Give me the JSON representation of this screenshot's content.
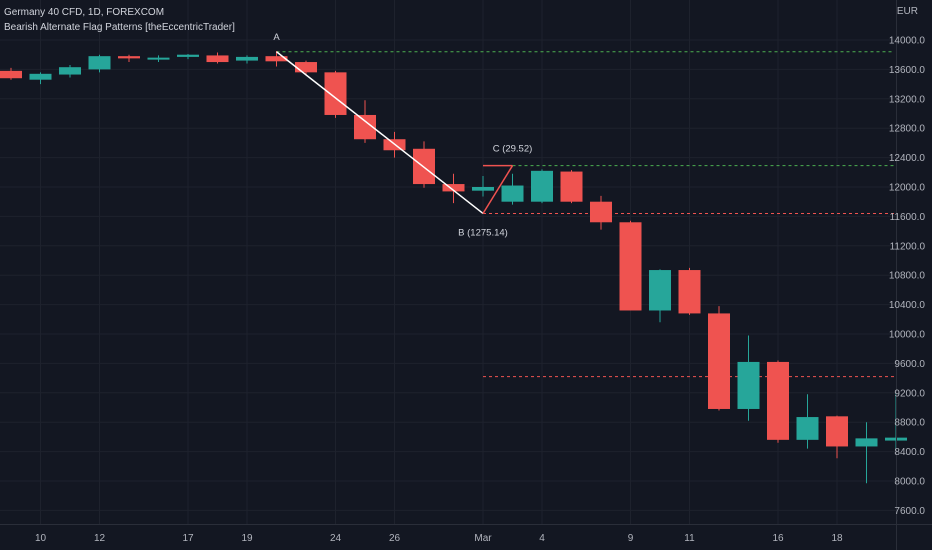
{
  "header": {
    "symbol_line": "Germany 40 CFD, 1D, FOREXCOM",
    "indicator_line": "Bearish Alternate Flag Patterns [theEccentricTrader]"
  },
  "axis": {
    "currency": "EUR"
  },
  "colors": {
    "background": "#131722",
    "up": "#26a69a",
    "down": "#ef5350",
    "grid": "#1e222d",
    "pattern_line": "#ffffff",
    "pattern_line_red": "#ef5350",
    "level_green": "#4caf50",
    "level_red": "#ef5350"
  },
  "chart_data": {
    "type": "candlestick",
    "y_ticks": [
      14000,
      13600,
      13200,
      12800,
      12400,
      12000,
      11600,
      11200,
      10800,
      10400,
      10000,
      9600,
      9200,
      8800,
      8400,
      8000,
      7600
    ],
    "y_tick_labels": [
      "14000.0",
      "13600.0",
      "13200.0",
      "12800.0",
      "12400.0",
      "12000.0",
      "11600.0",
      "11200.0",
      "10800.0",
      "10400.0",
      "10000.0",
      "9600.0",
      "9200.0",
      "8800.0",
      "8400.0",
      "8000.0",
      "7600.0"
    ],
    "x_ticks": [
      {
        "index": 1,
        "label": "10"
      },
      {
        "index": 3,
        "label": "12"
      },
      {
        "index": 6,
        "label": "17"
      },
      {
        "index": 8,
        "label": "19"
      },
      {
        "index": 11,
        "label": "24"
      },
      {
        "index": 13,
        "label": "26"
      },
      {
        "index": 16,
        "label": "Mar"
      },
      {
        "index": 18,
        "label": "4"
      },
      {
        "index": 21,
        "label": "9"
      },
      {
        "index": 23,
        "label": "11"
      },
      {
        "index": 26,
        "label": "16"
      },
      {
        "index": 28,
        "label": "18"
      }
    ],
    "candles": [
      {
        "o": 13580,
        "h": 13620,
        "l": 13460,
        "c": 13480
      },
      {
        "o": 13460,
        "h": 13560,
        "l": 13400,
        "c": 13540
      },
      {
        "o": 13530,
        "h": 13660,
        "l": 13490,
        "c": 13630
      },
      {
        "o": 13600,
        "h": 13800,
        "l": 13560,
        "c": 13780
      },
      {
        "o": 13780,
        "h": 13800,
        "l": 13700,
        "c": 13750
      },
      {
        "o": 13740,
        "h": 13790,
        "l": 13700,
        "c": 13760
      },
      {
        "o": 13770,
        "h": 13810,
        "l": 13740,
        "c": 13800
      },
      {
        "o": 13790,
        "h": 13830,
        "l": 13680,
        "c": 13700
      },
      {
        "o": 13720,
        "h": 13790,
        "l": 13680,
        "c": 13770
      },
      {
        "o": 13780,
        "h": 13850,
        "l": 13640,
        "c": 13710
      },
      {
        "o": 13700,
        "h": 13720,
        "l": 13520,
        "c": 13560
      },
      {
        "o": 13560,
        "h": 13580,
        "l": 12940,
        "c": 12980
      },
      {
        "o": 12980,
        "h": 13180,
        "l": 12600,
        "c": 12650
      },
      {
        "o": 12650,
        "h": 12750,
        "l": 12400,
        "c": 12500
      },
      {
        "o": 12520,
        "h": 12620,
        "l": 11990,
        "c": 12040
      },
      {
        "o": 12040,
        "h": 12180,
        "l": 11780,
        "c": 11940
      },
      {
        "o": 11950,
        "h": 12150,
        "l": 11870,
        "c": 12000
      },
      {
        "o": 11800,
        "h": 12180,
        "l": 11760,
        "c": 12020
      },
      {
        "o": 11800,
        "h": 12240,
        "l": 11780,
        "c": 12220
      },
      {
        "o": 12210,
        "h": 12230,
        "l": 11780,
        "c": 11800
      },
      {
        "o": 11800,
        "h": 11880,
        "l": 11420,
        "c": 11520
      },
      {
        "o": 11520,
        "h": 11540,
        "l": 10320,
        "c": 10320
      },
      {
        "o": 10320,
        "h": 10880,
        "l": 10160,
        "c": 10870
      },
      {
        "o": 10870,
        "h": 10900,
        "l": 10260,
        "c": 10280
      },
      {
        "o": 10280,
        "h": 10380,
        "l": 8960,
        "c": 8980
      },
      {
        "o": 8980,
        "h": 9980,
        "l": 8820,
        "c": 9620
      },
      {
        "o": 9620,
        "h": 9640,
        "l": 8520,
        "c": 8560
      },
      {
        "o": 8560,
        "h": 9180,
        "l": 8440,
        "c": 8870
      },
      {
        "o": 8880,
        "h": 8890,
        "l": 8310,
        "c": 8470
      },
      {
        "o": 8470,
        "h": 8800,
        "l": 7970,
        "c": 8580
      },
      {
        "o": 8550,
        "h": 9200,
        "l": 8420,
        "c": 8590
      }
    ],
    "pattern": {
      "A": {
        "index": 9,
        "value": 13840,
        "label": "A"
      },
      "B": {
        "index": 16,
        "value": 11640,
        "label": "B (1275.14)"
      },
      "C": {
        "index": 17,
        "value": 12290,
        "label": "C (29.52)"
      }
    },
    "levels": [
      {
        "value": 13840,
        "from_index": 9,
        "color": "#4caf50"
      },
      {
        "value": 12290,
        "from_index": 17,
        "color": "#4caf50"
      },
      {
        "value": 11640,
        "from_index": 16,
        "color": "#ef5350"
      },
      {
        "value": 9420,
        "from_index": 16,
        "color": "#ef5350"
      }
    ],
    "grid": true
  }
}
